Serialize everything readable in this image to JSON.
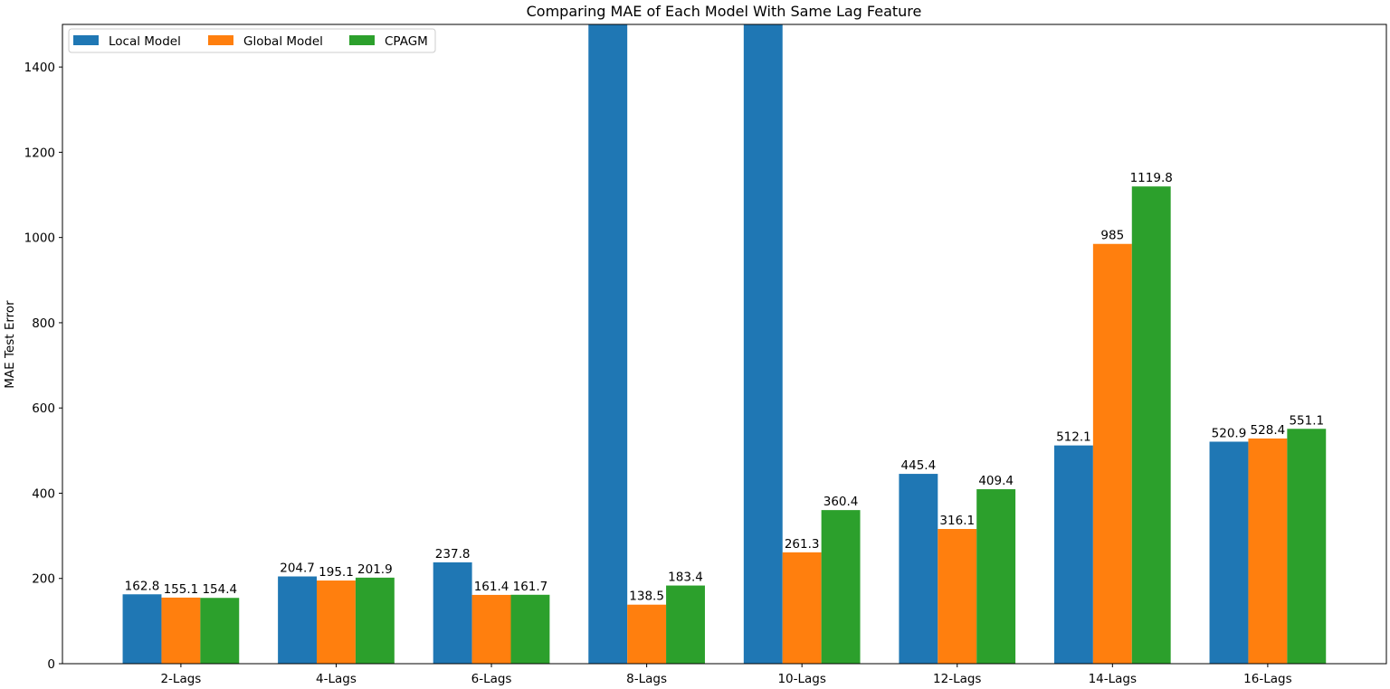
{
  "chart_data": {
    "type": "bar",
    "title": "Comparing MAE of Each Model With Same Lag Feature",
    "xlabel": "",
    "ylabel": "MAE Test Error",
    "categories": [
      "2-Lags",
      "4-Lags",
      "6-Lags",
      "8-Lags",
      "10-Lags",
      "12-Lags",
      "14-Lags",
      "16-Lags"
    ],
    "ylim": [
      0,
      1500
    ],
    "yticks": [
      0,
      200,
      400,
      600,
      800,
      1000,
      1200,
      1400
    ],
    "legend_position": "top-left",
    "legend_columns": 3,
    "grid": false,
    "series": [
      {
        "name": "Local Model",
        "color": "#1f77b4",
        "values": [
          162.8,
          204.7,
          237.8,
          null,
          null,
          445.4,
          512.1,
          520.9
        ],
        "labels": [
          "162.8",
          "204.7",
          "237.8",
          "",
          "",
          "445.4",
          "512.1",
          "520.9"
        ],
        "clipped_above_ylim": [
          false,
          false,
          false,
          true,
          true,
          false,
          false,
          false
        ]
      },
      {
        "name": "Global Model",
        "color": "#ff7f0e",
        "values": [
          155.1,
          195.1,
          161.4,
          138.5,
          261.3,
          316.1,
          985,
          528.4
        ],
        "labels": [
          "155.1",
          "195.1",
          "161.4",
          "138.5",
          "261.3",
          "316.1",
          "985",
          "528.4"
        ],
        "clipped_above_ylim": [
          false,
          false,
          false,
          false,
          false,
          false,
          false,
          false
        ]
      },
      {
        "name": "CPAGM",
        "color": "#2ca02c",
        "values": [
          154.4,
          201.9,
          161.7,
          183.4,
          360.4,
          409.4,
          1119.8,
          551.1
        ],
        "labels": [
          "154.4",
          "201.9",
          "161.7",
          "183.4",
          "360.4",
          "409.4",
          "1119.8",
          "551.1"
        ],
        "clipped_above_ylim": [
          false,
          false,
          false,
          false,
          false,
          false,
          false,
          false
        ]
      }
    ]
  }
}
